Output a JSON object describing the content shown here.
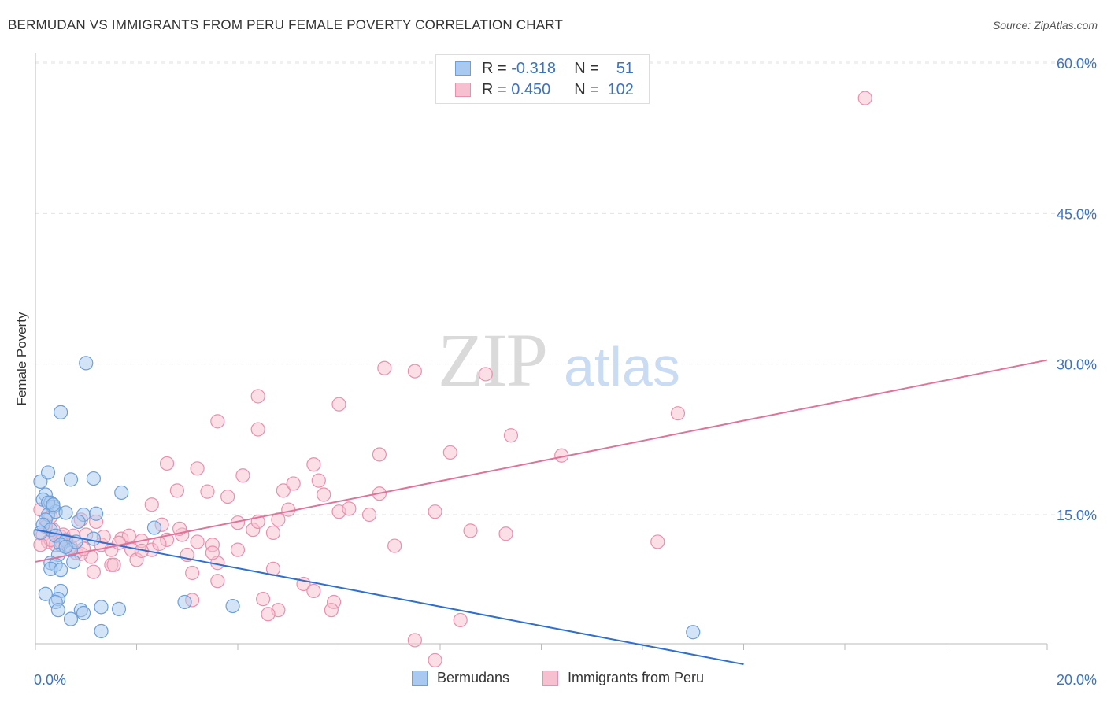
{
  "header": {
    "title": "BERMUDAN VS IMMIGRANTS FROM PERU FEMALE POVERTY CORRELATION CHART",
    "source": "Source: ZipAtlas.com"
  },
  "watermark": {
    "zip": "ZIP",
    "atlas": "atlas"
  },
  "legend": {
    "r_label": "R =",
    "n_label": "N =",
    "rows": [
      {
        "r": "-0.318",
        "n": "51",
        "color": "#a9c9f0",
        "border": "#6e9fd9"
      },
      {
        "r": "0.450",
        "n": "102",
        "color": "#f7c0d0",
        "border": "#e990ae"
      }
    ]
  },
  "colors": {
    "blue_fill": "#a9c9f0",
    "blue_stroke": "#6e9fd9",
    "blue_line": "#2e6fd1",
    "pink_fill": "#f7c0d0",
    "pink_stroke": "#e990ae",
    "pink_line": "#e2729a",
    "tick_label": "#3b73c4"
  },
  "chart_data": {
    "type": "scatter",
    "xlabel": "",
    "ylabel": "Female Poverty",
    "xlim": [
      0,
      20
    ],
    "ylim": [
      0,
      62
    ],
    "x_tick_labels": [
      {
        "value": 0,
        "label": "0.0%"
      },
      {
        "value": 20,
        "label": "20.0%"
      }
    ],
    "y_tick_labels": [
      {
        "value": 15,
        "label": "15.0%"
      },
      {
        "value": 30,
        "label": "30.0%"
      },
      {
        "value": 45,
        "label": "45.0%"
      },
      {
        "value": 60,
        "label": "60.0%"
      }
    ],
    "grid": true,
    "series": [
      {
        "name": "Bermudans",
        "trend": {
          "x": [
            0,
            14
          ],
          "y": [
            13.5,
            0.1
          ]
        },
        "points": [
          [
            0.1,
            18.3
          ],
          [
            0.2,
            17.0
          ],
          [
            0.15,
            16.5
          ],
          [
            0.3,
            16.2
          ],
          [
            0.35,
            15.8
          ],
          [
            0.25,
            15.0
          ],
          [
            0.4,
            15.3
          ],
          [
            0.2,
            14.5
          ],
          [
            0.15,
            14.0
          ],
          [
            0.3,
            13.5
          ],
          [
            0.1,
            13.2
          ],
          [
            0.4,
            12.9
          ],
          [
            0.6,
            12.4
          ],
          [
            0.5,
            12.0
          ],
          [
            0.7,
            11.5
          ],
          [
            0.45,
            11.0
          ],
          [
            0.3,
            10.2
          ],
          [
            0.4,
            10.0
          ],
          [
            0.3,
            9.6
          ],
          [
            0.5,
            9.5
          ],
          [
            0.75,
            10.3
          ],
          [
            0.2,
            7.1
          ],
          [
            0.5,
            7.4
          ],
          [
            0.45,
            6.6
          ],
          [
            0.4,
            6.3
          ],
          [
            0.45,
            5.5
          ],
          [
            0.9,
            5.5
          ],
          [
            0.95,
            5.2
          ],
          [
            0.7,
            4.6
          ],
          [
            1.3,
            5.8
          ],
          [
            1.65,
            5.6
          ],
          [
            1.3,
            3.4
          ],
          [
            1.0,
            30.1
          ],
          [
            0.5,
            25.2
          ],
          [
            0.25,
            19.2
          ],
          [
            0.7,
            18.5
          ],
          [
            1.15,
            18.6
          ],
          [
            1.7,
            17.2
          ],
          [
            0.25,
            16.2
          ],
          [
            0.35,
            16.0
          ],
          [
            0.6,
            15.2
          ],
          [
            0.95,
            15.0
          ],
          [
            1.2,
            15.1
          ],
          [
            0.85,
            14.3
          ],
          [
            2.35,
            13.7
          ],
          [
            1.15,
            12.6
          ],
          [
            0.8,
            12.3
          ],
          [
            0.6,
            11.8
          ],
          [
            2.95,
            6.3
          ],
          [
            3.9,
            5.9
          ],
          [
            13.0,
            3.3
          ]
        ]
      },
      {
        "name": "Immigrants from Peru",
        "trend": {
          "x": [
            0,
            20
          ],
          "y": [
            10.3,
            30.4
          ]
        },
        "points": [
          [
            0.1,
            15.5
          ],
          [
            0.3,
            14.8
          ],
          [
            0.2,
            14.0
          ],
          [
            0.35,
            13.5
          ],
          [
            0.15,
            13.0
          ],
          [
            0.5,
            12.8
          ],
          [
            0.25,
            12.3
          ],
          [
            0.4,
            12.0
          ],
          [
            0.6,
            12.5
          ],
          [
            0.7,
            11.8
          ],
          [
            0.9,
            14.5
          ],
          [
            1.2,
            14.3
          ],
          [
            1.0,
            13.0
          ],
          [
            1.3,
            12.0
          ],
          [
            1.5,
            11.5
          ],
          [
            0.8,
            11.2
          ],
          [
            1.1,
            10.8
          ],
          [
            1.5,
            10.0
          ],
          [
            1.9,
            11.5
          ],
          [
            2.1,
            12.4
          ],
          [
            2.3,
            11.5
          ],
          [
            2.0,
            10.5
          ],
          [
            2.6,
            12.5
          ],
          [
            2.9,
            13.0
          ],
          [
            3.0,
            11.0
          ],
          [
            3.1,
            9.2
          ],
          [
            3.6,
            10.2
          ],
          [
            3.5,
            12.0
          ],
          [
            4.0,
            11.5
          ],
          [
            4.0,
            14.2
          ],
          [
            4.3,
            13.5
          ],
          [
            4.4,
            14.3
          ],
          [
            4.7,
            13.2
          ],
          [
            4.8,
            14.5
          ],
          [
            5.0,
            15.5
          ],
          [
            3.8,
            16.8
          ],
          [
            3.4,
            17.3
          ],
          [
            3.2,
            19.6
          ],
          [
            2.6,
            20.1
          ],
          [
            2.8,
            17.4
          ],
          [
            2.3,
            16.0
          ],
          [
            2.5,
            14.0
          ],
          [
            1.7,
            12.6
          ],
          [
            1.55,
            10.0
          ],
          [
            1.15,
            9.3
          ],
          [
            0.9,
            11.1
          ],
          [
            0.55,
            13.0
          ],
          [
            0.3,
            12.5
          ],
          [
            3.6,
            24.3
          ],
          [
            4.4,
            23.5
          ],
          [
            4.4,
            26.8
          ],
          [
            4.1,
            18.9
          ],
          [
            4.9,
            17.4
          ],
          [
            5.1,
            18.1
          ],
          [
            5.5,
            20.0
          ],
          [
            5.7,
            17.0
          ],
          [
            5.6,
            18.4
          ],
          [
            6.0,
            15.3
          ],
          [
            6.2,
            15.6
          ],
          [
            6.6,
            15.0
          ],
          [
            6.8,
            17.1
          ],
          [
            6.0,
            26.0
          ],
          [
            6.9,
            29.6
          ],
          [
            7.5,
            29.3
          ],
          [
            6.8,
            21.0
          ],
          [
            8.2,
            21.2
          ],
          [
            8.9,
            29.0
          ],
          [
            9.4,
            22.9
          ],
          [
            10.4,
            20.9
          ],
          [
            12.7,
            25.1
          ],
          [
            7.1,
            11.9
          ],
          [
            7.9,
            15.3
          ],
          [
            8.6,
            13.4
          ],
          [
            9.3,
            13.1
          ],
          [
            12.3,
            12.3
          ],
          [
            16.4,
            56.5
          ],
          [
            4.7,
            9.6
          ],
          [
            5.3,
            8.1
          ],
          [
            5.5,
            7.4
          ],
          [
            5.9,
            6.3
          ],
          [
            5.85,
            5.5
          ],
          [
            4.5,
            6.6
          ],
          [
            4.8,
            5.5
          ],
          [
            4.6,
            5.1
          ],
          [
            3.6,
            8.4
          ],
          [
            3.1,
            6.5
          ],
          [
            7.5,
            2.5
          ],
          [
            7.9,
            0.5
          ],
          [
            8.4,
            4.5
          ],
          [
            3.5,
            11.2
          ],
          [
            3.2,
            12.3
          ],
          [
            2.85,
            13.6
          ],
          [
            2.45,
            12.1
          ],
          [
            2.1,
            11.4
          ],
          [
            1.85,
            12.9
          ],
          [
            1.65,
            12.2
          ],
          [
            1.35,
            12.8
          ],
          [
            0.95,
            11.6
          ],
          [
            0.75,
            12.9
          ],
          [
            0.5,
            12.3
          ],
          [
            0.2,
            13.8
          ],
          [
            0.1,
            12.0
          ]
        ]
      }
    ]
  }
}
